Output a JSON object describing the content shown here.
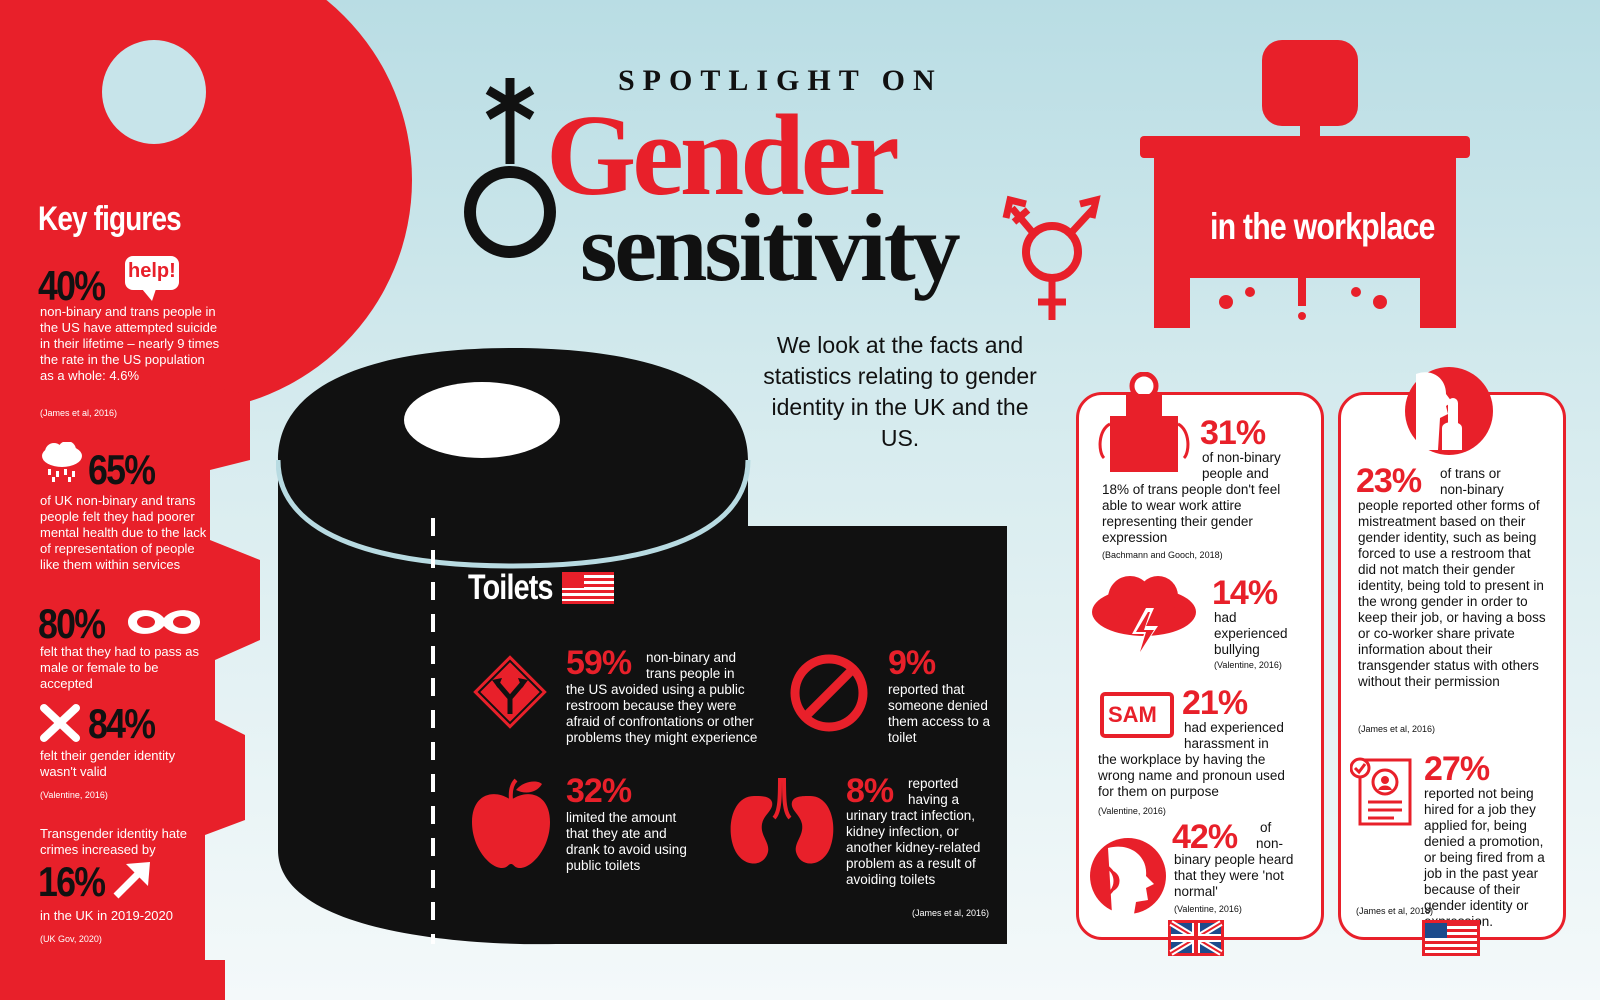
{
  "title": {
    "spotlight": "SPOTLIGHT ON",
    "gender": "Gender",
    "sensitivity": "sensitivity",
    "intro": "We look at the facts and statistics relating to gender identity in the UK and the US."
  },
  "colors": {
    "accent": "#e8202a",
    "dark": "#111111",
    "background": "#c9e6eb"
  },
  "key_figures": {
    "heading": "Key figures",
    "help_badge": "help!",
    "items": [
      {
        "value": "40%",
        "text": "non-binary and trans people in the US have attempted suicide in their lifetime – nearly 9 times the rate in the US population as a whole: 4.6%",
        "source": "(James et al, 2016)",
        "icon": "speech-bubble-help-icon"
      },
      {
        "value": "65%",
        "text": "of UK non-binary and trans people felt they had poorer mental health due to the lack of representation of people like them within services",
        "icon": "rain-cloud-icon"
      },
      {
        "value": "80%",
        "text": "felt that they had to pass as male or female to be accepted",
        "icon": "mask-icon"
      },
      {
        "value": "84%",
        "text": "felt their gender identity wasn't valid",
        "source": "(Valentine, 2016)",
        "icon": "cross-icon"
      },
      {
        "pre": "Transgender identity hate crimes increased by",
        "value": "16%",
        "text": "in the UK in 2019-2020",
        "source": "(UK Gov, 2020)",
        "icon": "arrow-up-right-icon"
      }
    ]
  },
  "toilets": {
    "heading": "Toilets",
    "items": [
      {
        "value": "59%",
        "text_a": "non-binary and",
        "text_b": "trans people in",
        "text": "the US avoided using a public restroom because they were afraid of confrontations or other problems they might experience",
        "icon": "fork-road-sign-icon"
      },
      {
        "value": "9%",
        "text": "reported that someone denied them access to a toilet",
        "icon": "prohibited-icon"
      },
      {
        "value": "32%",
        "text": "limited the amount that they ate and drank to avoid using public toilets",
        "icon": "apple-icon"
      },
      {
        "value": "8%",
        "text_a": "reported",
        "text_b": "having a",
        "text": "urinary tract infection, kidney infection, or another kidney-related problem as a result of avoiding toilets",
        "icon": "kidneys-icon"
      }
    ],
    "source": "(James et al, 2016)"
  },
  "workplace": {
    "heading": "in the workplace",
    "uk_card": [
      {
        "value": "31%",
        "text_a": "of non-binary",
        "text_b": "people and",
        "text": "18% of trans people don't feel able to wear work attire representing their gender expression",
        "source": "(Bachmann and Gooch, 2018)",
        "icon": "apron-icon"
      },
      {
        "value": "14%",
        "text": "had experienced bullying",
        "source": "(Valentine, 2016)",
        "icon": "storm-cloud-icon"
      },
      {
        "value": "21%",
        "text_a": "had experienced",
        "text_b": "harassment in",
        "text": "the workplace by having the wrong name and pronoun used for them on purpose",
        "source": "(Valentine, 2016)",
        "icon": "name-tag-icon",
        "tag": "SAM"
      },
      {
        "value": "42%",
        "text_a": "of",
        "text_b": "non-",
        "text": "binary people heard that they were 'not normal'",
        "source": "(Valentine, 2016)",
        "icon": "speaking-head-icon"
      }
    ],
    "us_card": [
      {
        "value": "23%",
        "text_a": "of trans or",
        "text_b": "non-binary",
        "text": "people reported other forms of mistreatment based on their gender identity, such as being forced to use a restroom that did not match their gender identity, being told to present in the wrong gender in order to keep their job, or having a boss or co-worker share private information about their transgender status with others without their permission",
        "source": "(James et al, 2016)",
        "icon": "shush-face-icon"
      },
      {
        "value": "27%",
        "text": "reported not being hired for a job they applied for, being denied a promotion, or being fired from a job in the past year because of their gender identity or expression.",
        "source": "(James et al, 2016)",
        "icon": "resume-icon"
      }
    ]
  }
}
